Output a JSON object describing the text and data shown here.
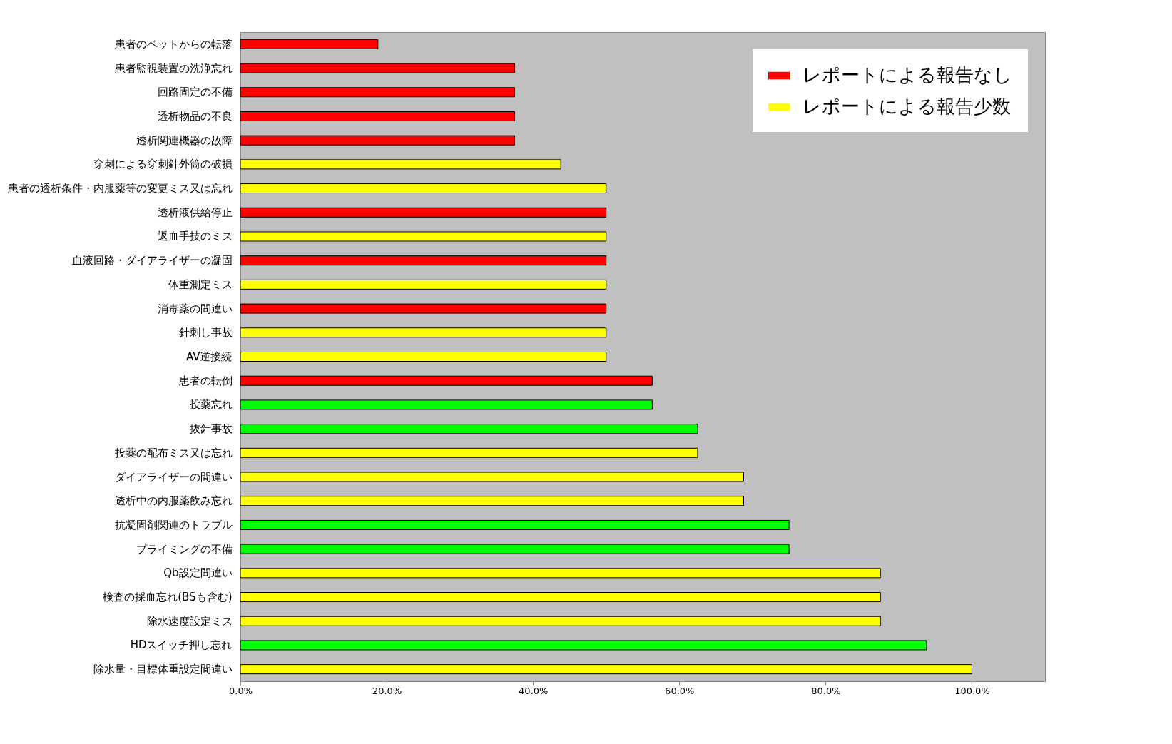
{
  "chart_data": {
    "type": "bar",
    "orientation": "horizontal",
    "categories": [
      "患者のベットからの転落",
      "患者監視装置の洗浄忘れ",
      "回路固定の不備",
      "透析物品の不良",
      "透析関連機器の故障",
      "穿刺による穿刺針外筒の破損",
      "患者の透析条件・内服薬等の変更ミス又は忘れ",
      "透析液供給停止",
      "返血手技のミス",
      "血液回路・ダイアライザーの凝固",
      "体重測定ミス",
      "消毒薬の間違い",
      "針刺し事故",
      "AV逆接続",
      "患者の転倒",
      "投薬忘れ",
      "抜針事故",
      "投薬の配布ミス又は忘れ",
      "ダイアライザーの間違い",
      "透析中の内服薬飲み忘れ",
      "抗凝固剤関連のトラブル",
      "プライミングの不備",
      "Qb設定間違い",
      "検査の採血忘れ(BSも含む)",
      "除水速度設定ミス",
      "HDスイッチ押し忘れ",
      "除水量・目標体重設定間違い"
    ],
    "series": [
      {
        "name": "レポートによる報告なし",
        "color": "#ff0000",
        "values": [
          18.8,
          37.5,
          37.5,
          37.5,
          37.5,
          null,
          null,
          50,
          null,
          50,
          null,
          50,
          null,
          null,
          56.3,
          null,
          null,
          null,
          null,
          null,
          null,
          null,
          null,
          null,
          null,
          null,
          null
        ]
      },
      {
        "name": "レポートによる報告少数",
        "color": "#ffff00",
        "values": [
          null,
          null,
          null,
          null,
          null,
          43.8,
          50,
          null,
          50,
          null,
          50,
          null,
          50,
          50,
          null,
          null,
          null,
          62.5,
          68.8,
          68.8,
          null,
          null,
          87.5,
          87.5,
          87.5,
          null,
          100
        ]
      },
      {
        "color": "#00ff00",
        "values": [
          null,
          null,
          null,
          null,
          null,
          null,
          null,
          null,
          null,
          null,
          null,
          null,
          null,
          null,
          null,
          56.3,
          62.5,
          null,
          null,
          null,
          75,
          75,
          null,
          null,
          null,
          93.8,
          null
        ]
      }
    ],
    "xlim": [
      0,
      110
    ],
    "xticks": [
      {
        "value": 0,
        "label": "0.0%"
      },
      {
        "value": 20,
        "label": "20.0%"
      },
      {
        "value": 40,
        "label": "40.0%"
      },
      {
        "value": 60,
        "label": "60.0%"
      },
      {
        "value": 80,
        "label": "80.0%"
      },
      {
        "value": 100,
        "label": "100.0%"
      }
    ],
    "grid": false,
    "legend": "top right"
  }
}
